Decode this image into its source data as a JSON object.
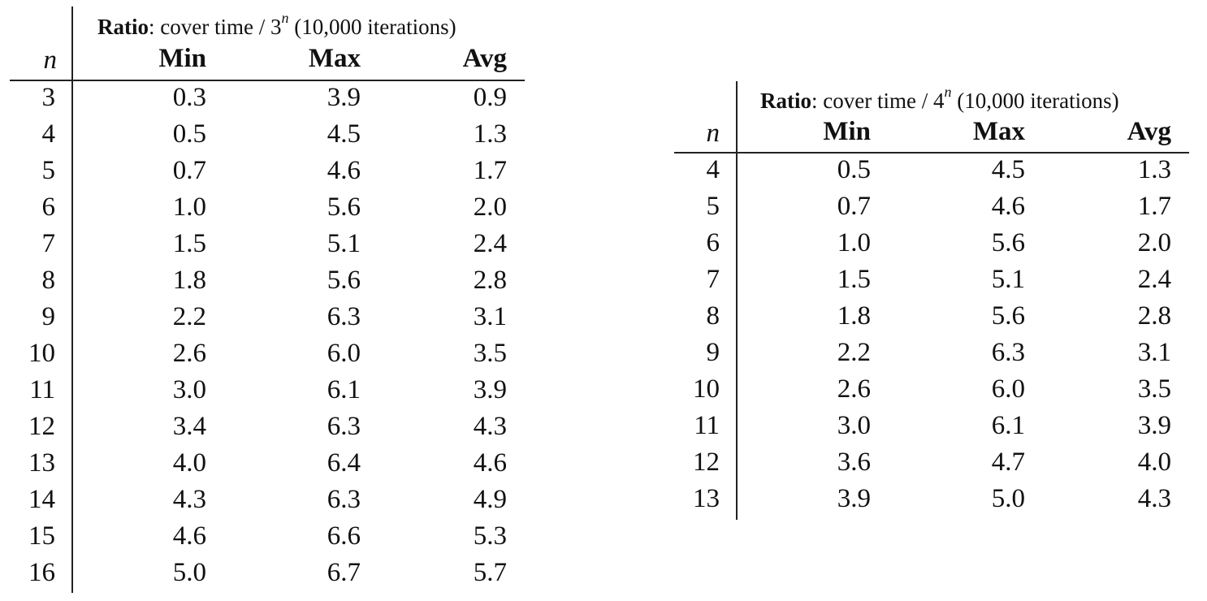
{
  "tables": [
    {
      "caption": {
        "bold": "Ratio",
        "rest": ": cover time / 3",
        "sup": "n",
        "tail": " (10,000 iterations)"
      },
      "headers": {
        "n": "n",
        "min": "Min",
        "max": "Max",
        "avg": "Avg"
      },
      "rows": [
        [
          "3",
          "0.3",
          "3.9",
          "0.9"
        ],
        [
          "4",
          "0.5",
          "4.5",
          "1.3"
        ],
        [
          "5",
          "0.7",
          "4.6",
          "1.7"
        ],
        [
          "6",
          "1.0",
          "5.6",
          "2.0"
        ],
        [
          "7",
          "1.5",
          "5.1",
          "2.4"
        ],
        [
          "8",
          "1.8",
          "5.6",
          "2.8"
        ],
        [
          "9",
          "2.2",
          "6.3",
          "3.1"
        ],
        [
          "10",
          "2.6",
          "6.0",
          "3.5"
        ],
        [
          "11",
          "3.0",
          "6.1",
          "3.9"
        ],
        [
          "12",
          "3.4",
          "6.3",
          "4.3"
        ],
        [
          "13",
          "4.0",
          "6.4",
          "4.6"
        ],
        [
          "14",
          "4.3",
          "6.3",
          "4.9"
        ],
        [
          "15",
          "4.6",
          "6.6",
          "5.3"
        ],
        [
          "16",
          "5.0",
          "6.7",
          "5.7"
        ]
      ]
    },
    {
      "caption": {
        "bold": "Ratio",
        "rest": ": cover time / 4",
        "sup": "n",
        "tail": " (10,000 iterations)"
      },
      "headers": {
        "n": "n",
        "min": "Min",
        "max": "Max",
        "avg": "Avg"
      },
      "rows": [
        [
          "4",
          "0.5",
          "4.5",
          "1.3"
        ],
        [
          "5",
          "0.7",
          "4.6",
          "1.7"
        ],
        [
          "6",
          "1.0",
          "5.6",
          "2.0"
        ],
        [
          "7",
          "1.5",
          "5.1",
          "2.4"
        ],
        [
          "8",
          "1.8",
          "5.6",
          "2.8"
        ],
        [
          "9",
          "2.2",
          "6.3",
          "3.1"
        ],
        [
          "10",
          "2.6",
          "6.0",
          "3.5"
        ],
        [
          "11",
          "3.0",
          "6.1",
          "3.9"
        ],
        [
          "12",
          "3.6",
          "4.7",
          "4.0"
        ],
        [
          "13",
          "3.9",
          "5.0",
          "4.3"
        ]
      ]
    }
  ]
}
